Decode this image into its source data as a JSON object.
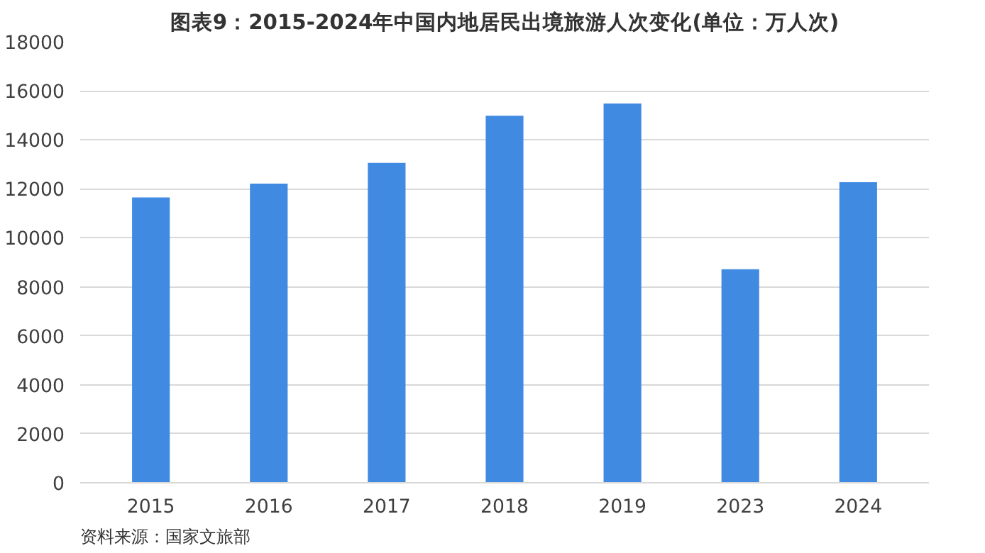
{
  "chart_data": {
    "type": "bar",
    "title": "图表9：2015-2024年中国内地居民出境旅游人次变化(单位：万人次)",
    "categories": [
      "2015",
      "2016",
      "2017",
      "2018",
      "2019",
      "2023",
      "2024"
    ],
    "values": [
      11650,
      12210,
      13060,
      14980,
      15480,
      8720,
      12270
    ],
    "color": "#418ae2",
    "ylim": [
      0,
      18000
    ],
    "yticks": [
      0,
      2000,
      4000,
      6000,
      8000,
      10000,
      12000,
      14000,
      16000,
      18000
    ],
    "grid": "y",
    "annotations": [
      "资料来源：国家文旅部"
    ]
  }
}
